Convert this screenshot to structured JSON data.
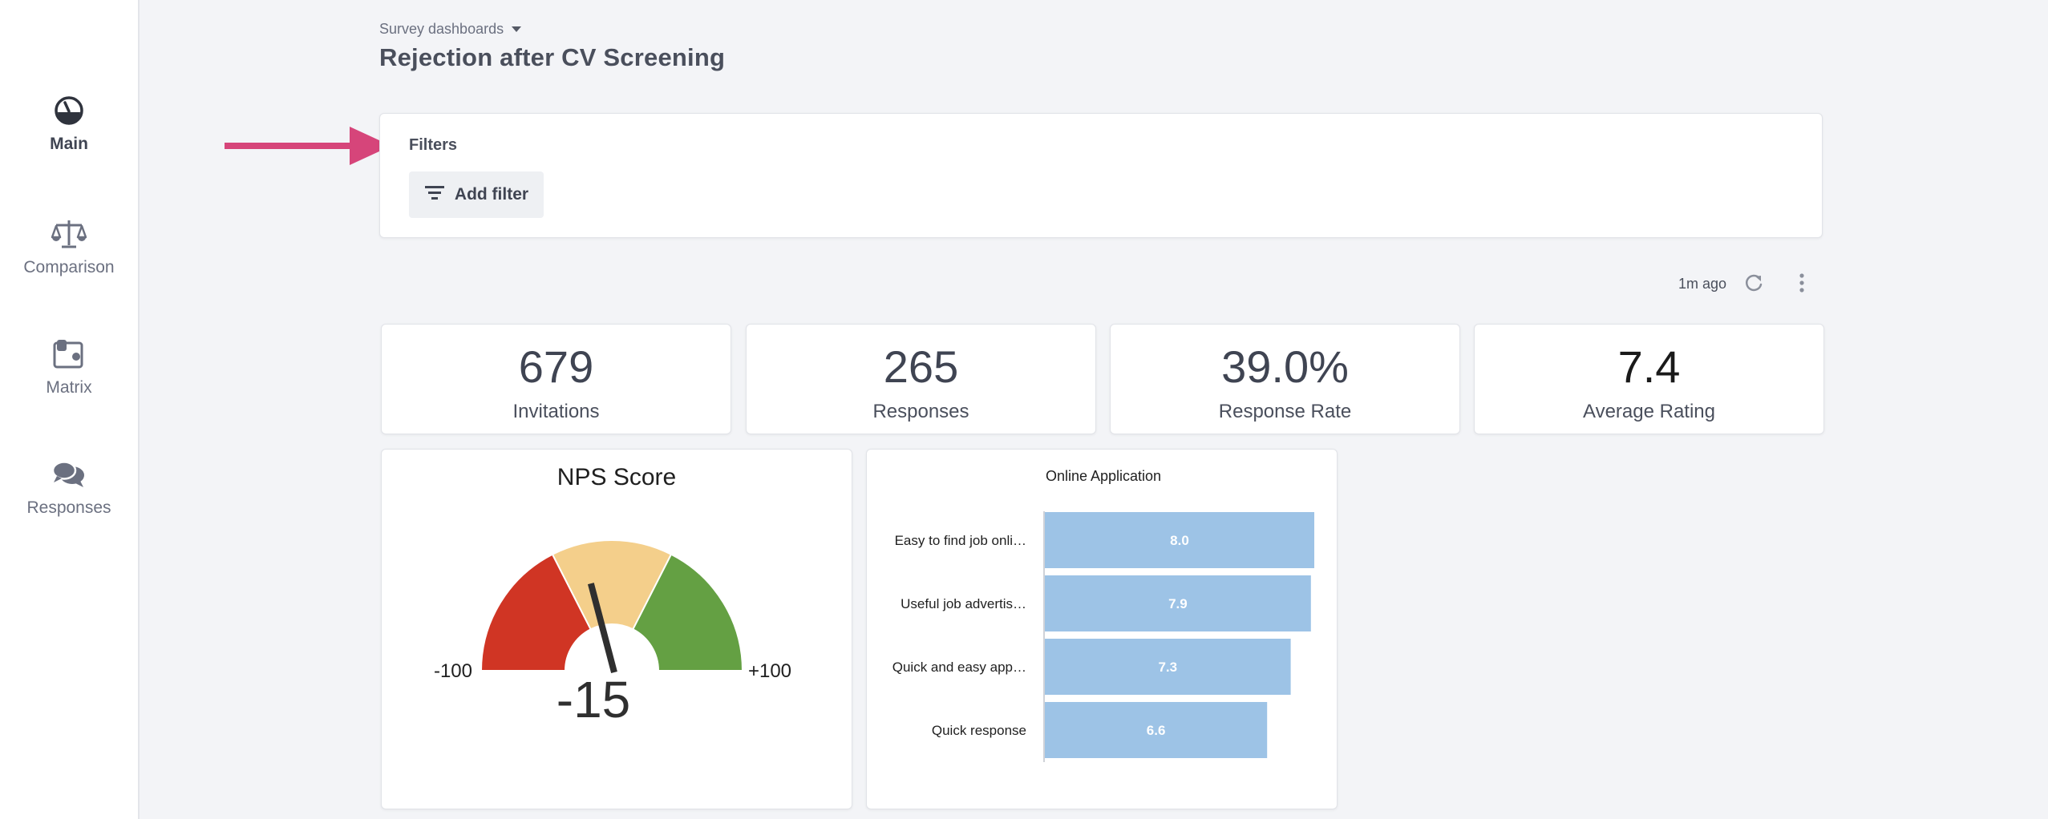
{
  "sidebar": {
    "items": [
      {
        "label": "Main",
        "icon": "dashboard-gauge-icon",
        "active": true
      },
      {
        "label": "Comparison",
        "icon": "scale-icon",
        "active": false
      },
      {
        "label": "Matrix",
        "icon": "matrix-icon",
        "active": false
      },
      {
        "label": "Responses",
        "icon": "chat-bubbles-icon",
        "active": false
      }
    ]
  },
  "header": {
    "breadcrumb": "Survey dashboards",
    "title": "Rejection after CV Screening"
  },
  "filters": {
    "title": "Filters",
    "add_filter_label": "Add filter"
  },
  "toolbar": {
    "updated": "1m ago"
  },
  "kpis": [
    {
      "value": "679",
      "label": "Invitations"
    },
    {
      "value": "265",
      "label": "Responses"
    },
    {
      "value": "39.0%",
      "label": "Response Rate"
    },
    {
      "value": "7.4",
      "label": "Average Rating"
    }
  ],
  "colors": {
    "accent_arrow": "#d6457a",
    "gauge_red": "#d03524",
    "gauge_yellow": "#f4cf8b",
    "gauge_green": "#64a043",
    "bar_fill": "#9dc3e6"
  },
  "nps": {
    "title": "NPS Score",
    "min_label": "-100",
    "max_label": "+100",
    "value_label": "-15"
  },
  "chart_data": [
    {
      "type": "gauge",
      "title": "NPS Score",
      "min": -100,
      "max": 100,
      "value": -15,
      "bands": [
        {
          "from": -100,
          "to": -30,
          "color": "#d03524"
        },
        {
          "from": -30,
          "to": 30,
          "color": "#f4cf8b"
        },
        {
          "from": 30,
          "to": 100,
          "color": "#64a043"
        }
      ]
    },
    {
      "type": "bar",
      "orientation": "horizontal",
      "title": "Online Application",
      "categories": [
        "Easy to find job onli…",
        "Useful job advertis…",
        "Quick and easy app…",
        "Quick response"
      ],
      "values": [
        8.0,
        7.9,
        7.3,
        6.6
      ],
      "value_labels": [
        "8.0",
        "7.9",
        "7.3",
        "6.6"
      ],
      "xlim": [
        0,
        8.0
      ]
    }
  ]
}
